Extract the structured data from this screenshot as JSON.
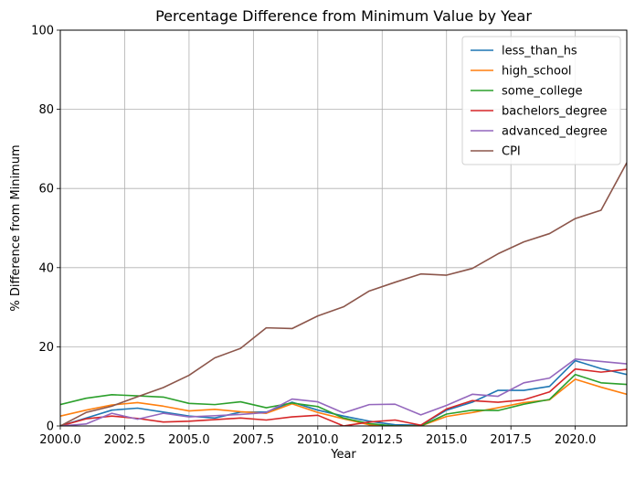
{
  "chart_data": {
    "type": "line",
    "title": "Percentage Difference from Minimum Value by Year",
    "xlabel": "Year",
    "ylabel": "% Difference from Minimum",
    "xlim": [
      2000,
      2022
    ],
    "ylim": [
      0,
      100
    ],
    "xticks": [
      2000.0,
      2002.5,
      2005.0,
      2007.5,
      2010.0,
      2012.5,
      2015.0,
      2017.5,
      2020.0
    ],
    "xtick_labels": [
      "2000.0",
      "2002.5",
      "2005.0",
      "2007.5",
      "2010.0",
      "2012.5",
      "2015.0",
      "2017.5",
      "2020.0"
    ],
    "yticks": [
      0,
      20,
      40,
      60,
      80,
      100
    ],
    "ytick_labels": [
      "0",
      "20",
      "40",
      "60",
      "80",
      "100"
    ],
    "grid": true,
    "legend_position": "top-right",
    "x": [
      2000,
      2001,
      2002,
      2003,
      2004,
      2005,
      2006,
      2007,
      2008,
      2009,
      2010,
      2011,
      2012,
      2013,
      2014,
      2015,
      2016,
      2017,
      2018,
      2019,
      2020,
      2021,
      2022
    ],
    "series": [
      {
        "name": "less_than_hs",
        "color": "#1f77b4",
        "values": [
          0.0,
          2.0,
          4.0,
          4.5,
          3.5,
          2.5,
          2.0,
          3.5,
          3.5,
          6.0,
          4.0,
          2.5,
          1.2,
          0.3,
          0.2,
          4.0,
          6.0,
          9.0,
          9.0,
          10.0,
          16.5,
          14.5,
          13.0
        ]
      },
      {
        "name": "high_school",
        "color": "#ff7f0e",
        "values": [
          2.5,
          4.0,
          5.3,
          5.9,
          5.0,
          3.8,
          4.2,
          3.6,
          3.2,
          5.6,
          3.4,
          1.8,
          0.3,
          0.0,
          0.0,
          2.4,
          3.4,
          4.6,
          5.9,
          6.6,
          11.8,
          9.8,
          8.0
        ]
      },
      {
        "name": "some_college",
        "color": "#2ca02c",
        "values": [
          5.4,
          7.0,
          7.9,
          7.6,
          7.3,
          5.7,
          5.4,
          6.1,
          4.6,
          5.8,
          4.9,
          2.0,
          0.6,
          0.0,
          0.0,
          3.0,
          4.0,
          3.9,
          5.5,
          6.7,
          13.0,
          10.9,
          10.5
        ]
      },
      {
        "name": "bachelors_degree",
        "color": "#d62728",
        "values": [
          0.0,
          1.8,
          2.5,
          1.9,
          1.0,
          1.2,
          1.6,
          2.0,
          1.5,
          2.3,
          2.7,
          0.0,
          1.0,
          1.5,
          0.2,
          4.3,
          6.4,
          6.0,
          6.6,
          8.6,
          14.4,
          13.6,
          14.3
        ]
      },
      {
        "name": "advanced_degree",
        "color": "#9467bd",
        "values": [
          0.0,
          0.5,
          3.2,
          1.7,
          3.2,
          2.3,
          2.6,
          2.9,
          3.4,
          6.8,
          6.1,
          3.3,
          5.4,
          5.5,
          2.8,
          5.2,
          8.0,
          7.5,
          10.9,
          12.1,
          16.9,
          16.3,
          15.7
        ]
      },
      {
        "name": "CPI",
        "color": "#8c564b",
        "values": [
          0.0,
          3.4,
          5.0,
          7.4,
          9.7,
          12.8,
          17.2,
          19.6,
          24.8,
          24.6,
          27.8,
          30.1,
          34.1,
          36.3,
          38.4,
          38.1,
          39.8,
          43.5,
          46.5,
          48.6,
          52.4,
          54.5,
          66.5
        ]
      }
    ]
  }
}
